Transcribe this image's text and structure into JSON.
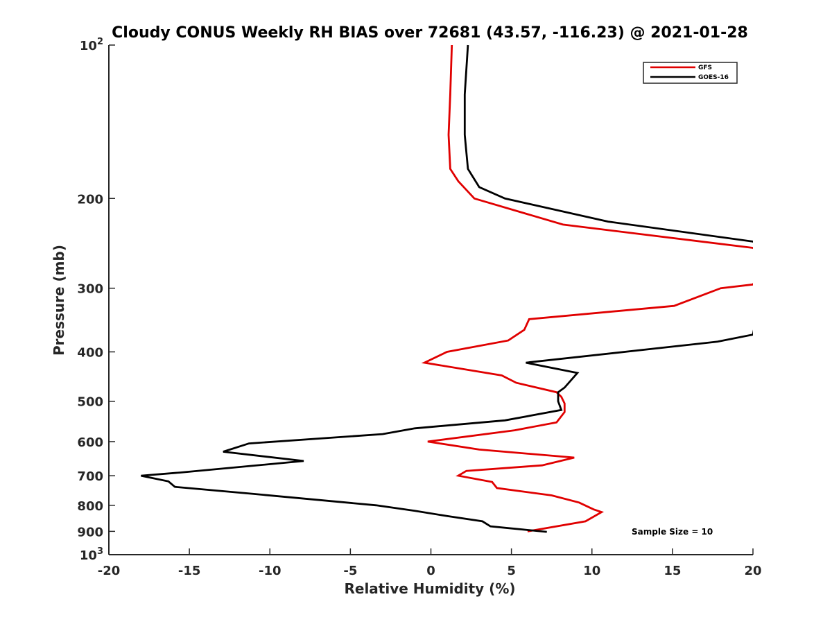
{
  "chart_data": {
    "type": "line",
    "title": "Cloudy CONUS Weekly RH BIAS over 72681 (43.57, -116.23) @ 2021-01-28",
    "xlabel": "Relative Humidity (%)",
    "ylabel": "Pressure (mb)",
    "xlim": [
      -20,
      20
    ],
    "ylim": [
      100,
      1000
    ],
    "y_scale": "log",
    "y_reversed": true,
    "grid": false,
    "legend_position": "top-right",
    "x_ticks": [
      "-20",
      "-15",
      "-10",
      "-5",
      "0",
      "5",
      "10",
      "15",
      "20"
    ],
    "y_ticks": [
      {
        "value": 100,
        "base": "10",
        "exp": "2"
      },
      {
        "value": 200,
        "label": "200"
      },
      {
        "value": 300,
        "label": "300"
      },
      {
        "value": 400,
        "label": "400"
      },
      {
        "value": 500,
        "label": "500"
      },
      {
        "value": 600,
        "label": "600"
      },
      {
        "value": 700,
        "label": "700"
      },
      {
        "value": 800,
        "label": "800"
      },
      {
        "value": 900,
        "label": "900"
      },
      {
        "value": 1000,
        "base": "10",
        "exp": "3"
      }
    ],
    "series": [
      {
        "name": "GFS",
        "color": "#e00000",
        "points": [
          {
            "x": 1.3,
            "p": 100
          },
          {
            "x": 1.2,
            "p": 125
          },
          {
            "x": 1.1,
            "p": 150
          },
          {
            "x": 1.2,
            "p": 175
          },
          {
            "x": 1.7,
            "p": 185
          },
          {
            "x": 2.7,
            "p": 200
          },
          {
            "x": 8.2,
            "p": 225
          },
          {
            "x": 20.0,
            "p": 250
          },
          {
            "x": 21.0,
            "p": 265
          },
          {
            "x": 20.0,
            "p": 295
          },
          {
            "x": 18.0,
            "p": 300
          },
          {
            "x": 15.1,
            "p": 325
          },
          {
            "x": 6.1,
            "p": 345
          },
          {
            "x": 5.8,
            "p": 362
          },
          {
            "x": 4.8,
            "p": 380
          },
          {
            "x": 1.0,
            "p": 400
          },
          {
            "x": -0.4,
            "p": 420
          },
          {
            "x": 4.4,
            "p": 445
          },
          {
            "x": 5.3,
            "p": 460
          },
          {
            "x": 7.8,
            "p": 480
          },
          {
            "x": 8.1,
            "p": 490
          },
          {
            "x": 8.3,
            "p": 505
          },
          {
            "x": 8.3,
            "p": 525
          },
          {
            "x": 7.8,
            "p": 550
          },
          {
            "x": 5.2,
            "p": 570
          },
          {
            "x": -0.2,
            "p": 600
          },
          {
            "x": 3.0,
            "p": 622
          },
          {
            "x": 8.9,
            "p": 645
          },
          {
            "x": 6.9,
            "p": 668
          },
          {
            "x": 2.2,
            "p": 685
          },
          {
            "x": 1.7,
            "p": 700
          },
          {
            "x": 3.8,
            "p": 720
          },
          {
            "x": 4.1,
            "p": 740
          },
          {
            "x": 7.5,
            "p": 765
          },
          {
            "x": 9.2,
            "p": 790
          },
          {
            "x": 10.1,
            "p": 815
          },
          {
            "x": 10.6,
            "p": 825
          },
          {
            "x": 9.6,
            "p": 860
          },
          {
            "x": 6.0,
            "p": 900
          }
        ]
      },
      {
        "name": "GOES-16",
        "color": "#000000",
        "points": [
          {
            "x": 2.3,
            "p": 100
          },
          {
            "x": 2.1,
            "p": 125
          },
          {
            "x": 2.1,
            "p": 150
          },
          {
            "x": 2.3,
            "p": 175
          },
          {
            "x": 3.0,
            "p": 190
          },
          {
            "x": 4.6,
            "p": 200
          },
          {
            "x": 11.0,
            "p": 222
          },
          {
            "x": 20.0,
            "p": 243
          },
          {
            "x": 21.0,
            "p": 255
          },
          {
            "x": 20.0,
            "p": 370
          },
          {
            "x": 17.8,
            "p": 382
          },
          {
            "x": 5.9,
            "p": 420
          },
          {
            "x": 9.1,
            "p": 440
          },
          {
            "x": 8.3,
            "p": 470
          },
          {
            "x": 7.9,
            "p": 480
          },
          {
            "x": 7.9,
            "p": 500
          },
          {
            "x": 8.1,
            "p": 520
          },
          {
            "x": 4.6,
            "p": 545
          },
          {
            "x": -1.0,
            "p": 565
          },
          {
            "x": -3.0,
            "p": 580
          },
          {
            "x": -11.3,
            "p": 605
          },
          {
            "x": -12.9,
            "p": 628
          },
          {
            "x": -7.9,
            "p": 655
          },
          {
            "x": -15.6,
            "p": 690
          },
          {
            "x": -18.0,
            "p": 700
          },
          {
            "x": -16.3,
            "p": 718
          },
          {
            "x": -15.9,
            "p": 736
          },
          {
            "x": -11.0,
            "p": 760
          },
          {
            "x": -3.4,
            "p": 800
          },
          {
            "x": -1.0,
            "p": 820
          },
          {
            "x": 1.0,
            "p": 840
          },
          {
            "x": 3.2,
            "p": 860
          },
          {
            "x": 3.7,
            "p": 880
          },
          {
            "x": 7.2,
            "p": 902
          }
        ]
      }
    ],
    "annotations": [
      "Sample Size = 10"
    ]
  }
}
